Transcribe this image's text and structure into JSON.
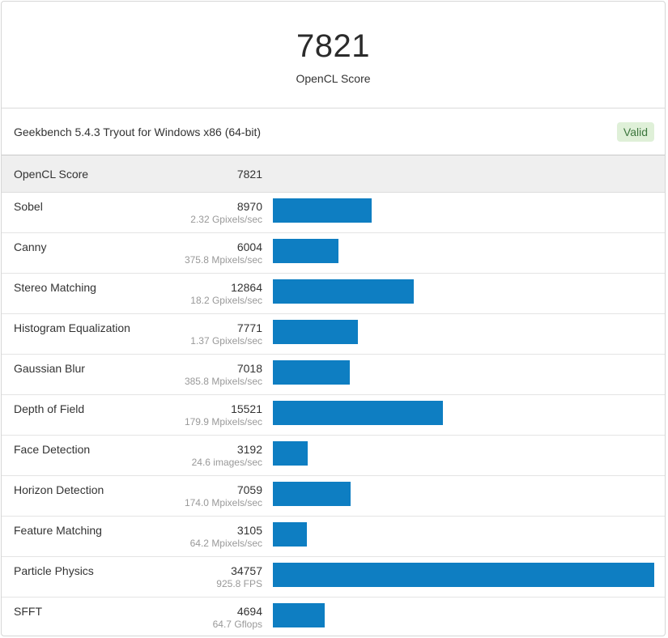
{
  "header": {
    "score": "7821",
    "score_label": "OpenCL Score"
  },
  "system": {
    "name": "Geekbench 5.4.3 Tryout for Windows x86 (64-bit)",
    "badge": "Valid"
  },
  "summary": {
    "label": "OpenCL Score",
    "score": "7821"
  },
  "colors": {
    "bar": "#0e7ec2",
    "badge_bg": "#dff0d8",
    "badge_text": "#3c763d"
  },
  "chart_data": {
    "type": "bar",
    "orientation": "horizontal",
    "categories": [
      "Sobel",
      "Canny",
      "Stereo Matching",
      "Histogram Equalization",
      "Gaussian Blur",
      "Depth of Field",
      "Face Detection",
      "Horizon Detection",
      "Feature Matching",
      "Particle Physics",
      "SFFT"
    ],
    "values": [
      8970,
      6004,
      12864,
      7771,
      7018,
      15521,
      3192,
      7059,
      3105,
      34757,
      4694
    ],
    "throughput": [
      "2.32 Gpixels/sec",
      "375.8 Mpixels/sec",
      "18.2 Gpixels/sec",
      "1.37 Gpixels/sec",
      "385.8 Mpixels/sec",
      "179.9 Mpixels/sec",
      "24.6 images/sec",
      "174.0 Mpixels/sec",
      "64.2 Mpixels/sec",
      "925.8 FPS",
      "64.7 Gflops"
    ],
    "xlim": [
      0,
      34757
    ]
  }
}
